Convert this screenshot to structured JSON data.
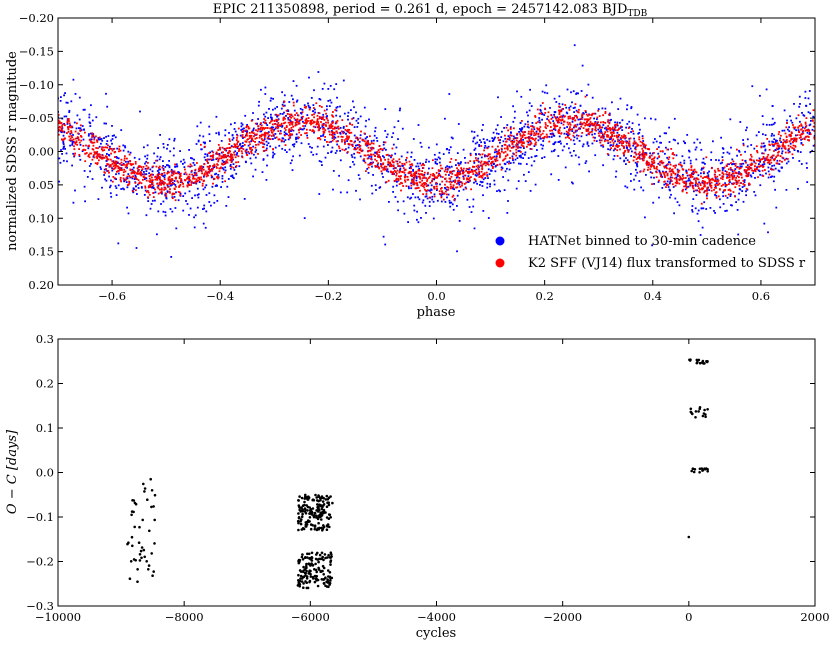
{
  "chart_data": [
    {
      "type": "scatter",
      "title": "EPIC 211350898, period = 0.261 d, epoch = 2457142.083 BJD",
      "title_subscript": "TDB",
      "xlabel": "phase",
      "ylabel": "normalized SDSS r magnitude",
      "xlim": [
        -0.7,
        0.7
      ],
      "ylim": [
        0.2,
        -0.2
      ],
      "y_inverted": true,
      "xticks": [
        "−0.6",
        "−0.4",
        "−0.2",
        "0.0",
        "0.2",
        "0.4",
        "0.6"
      ],
      "yticks": [
        "−0.20",
        "−0.15",
        "−0.10",
        "−0.05",
        "0.00",
        "0.05",
        "0.10",
        "0.15",
        "0.20"
      ],
      "legend_position": "lower-right",
      "grid": false,
      "model": {
        "form": "sinusoid",
        "amplitude": 0.045,
        "period_in_phase": 0.5,
        "minimum_magnitude_at_phase": 0.25
      },
      "series": [
        {
          "name": "HATNet binned to 30-min cadence",
          "color": "#0000ff",
          "count": 2300,
          "scatter_sigma": 0.03
        },
        {
          "name": "K2 SFF (VJ14) flux transformed to SDSS r",
          "color": "#ff0000",
          "count": 2600,
          "scatter_sigma": 0.012
        }
      ]
    },
    {
      "type": "scatter",
      "xlabel": "cycles",
      "ylabel": "O − C [days]",
      "xlim": [
        -10000,
        2000
      ],
      "ylim": [
        -0.3,
        0.3
      ],
      "xticks": [
        "−10000",
        "−8000",
        "−6000",
        "−4000",
        "−2000",
        "0",
        "2000"
      ],
      "yticks": [
        "−0.3",
        "−0.2",
        "−0.1",
        "0.0",
        "0.1",
        "0.2",
        "0.3"
      ],
      "grid": false,
      "color": "#000000",
      "clusters": [
        {
          "x_range": [
            -8900,
            -8450
          ],
          "y_values": [
            -0.2,
            -0.08
          ],
          "y_spread": 0.055,
          "count": 45
        },
        {
          "x_range": [
            -6200,
            -5650
          ],
          "y_values": [
            -0.09,
            -0.22
          ],
          "y_spread": 0.04,
          "count": 300
        },
        {
          "x_range": [
            0,
            300
          ],
          "y_values": [
            0.25
          ],
          "y_spread": 0.005,
          "count": 15
        },
        {
          "x_range": [
            0,
            300
          ],
          "y_values": [
            0.135
          ],
          "y_spread": 0.012,
          "count": 15
        },
        {
          "x_range": [
            0,
            300
          ],
          "y_values": [
            0.005
          ],
          "y_spread": 0.005,
          "count": 15
        }
      ],
      "points": [
        {
          "x": 0,
          "y": -0.145
        },
        {
          "x": -8530,
          "y": -0.015
        }
      ]
    }
  ]
}
